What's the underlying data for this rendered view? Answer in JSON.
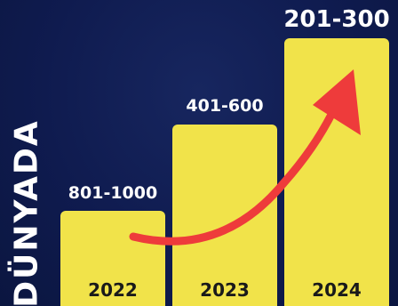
{
  "side_label": "DÜNYADA",
  "colors": {
    "background": "#0f1b4f",
    "bar": "#f1e34a",
    "arrow": "#ee3b3b",
    "value_text": "#ffffff",
    "category_text": "#1a1a1a"
  },
  "chart_data": {
    "type": "bar",
    "title": "",
    "xlabel": "",
    "ylabel": "",
    "categories": [
      "2022",
      "2023",
      "2024"
    ],
    "value_labels": [
      "801-1000",
      "401-600",
      "201-300"
    ],
    "annotation": "arrow-up-right-icon",
    "grid": false
  }
}
